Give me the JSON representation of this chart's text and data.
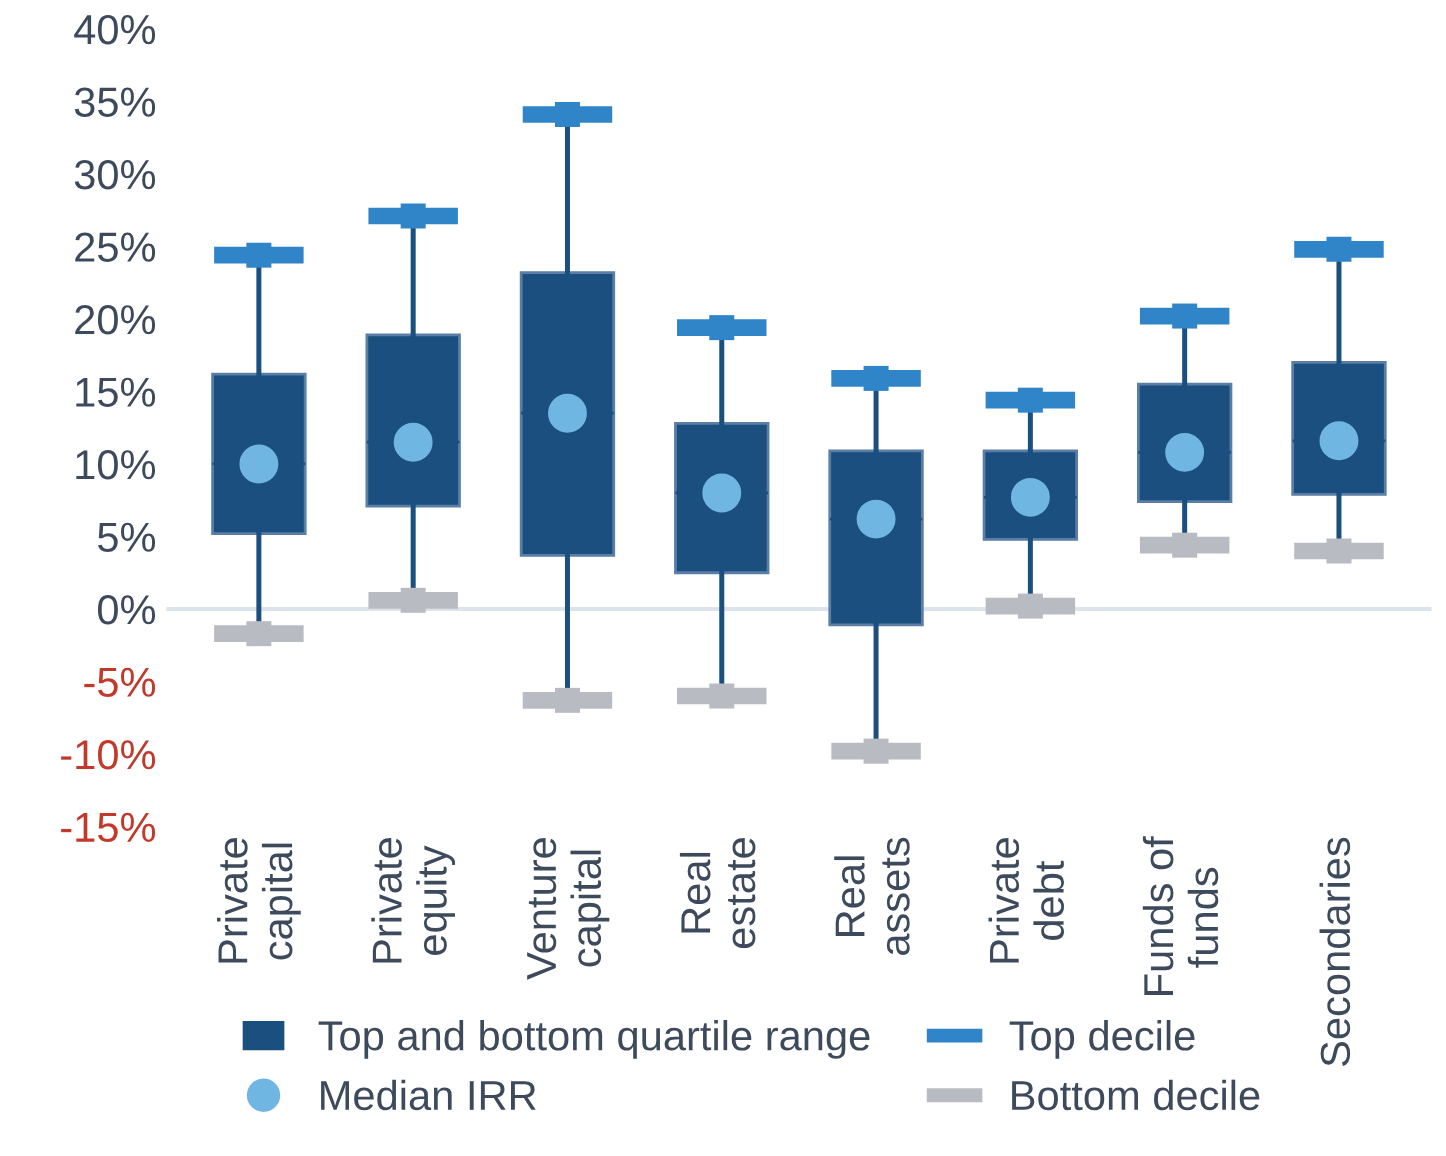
{
  "chart_data": {
    "type": "box",
    "categories": [
      "Private\ncapital",
      "Private\nequity",
      "Venture\ncapital",
      "Real\nestate",
      "Real\nassets",
      "Private\ndebt",
      "Funds of\nfunds",
      "Secondaries"
    ],
    "ylim": [
      -15,
      40
    ],
    "yticks": [
      {
        "value": -15,
        "label": "-15%"
      },
      {
        "value": -10,
        "label": "-10%"
      },
      {
        "value": -5,
        "label": "-5%"
      },
      {
        "value": 0,
        "label": "0%"
      },
      {
        "value": 5,
        "label": "5%"
      },
      {
        "value": 10,
        "label": "10%"
      },
      {
        "value": 15,
        "label": "15%"
      },
      {
        "value": 20,
        "label": "20%"
      },
      {
        "value": 25,
        "label": "25%"
      },
      {
        "value": 30,
        "label": "30%"
      },
      {
        "value": 35,
        "label": "35%"
      },
      {
        "value": 40,
        "label": "40%"
      }
    ],
    "grid": false,
    "legend": "bottom",
    "ref_lines": [
      {
        "axis": "y",
        "value": 0,
        "color": "#dde3ea"
      }
    ],
    "series": [
      {
        "name": "Top and bottom quartile range",
        "color": "#1a4f7f",
        "boxes": [
          {
            "low": -1.7,
            "q1": 5.2,
            "median": 10.0,
            "q3": 16.2,
            "high": 24.4
          },
          {
            "low": 0.6,
            "q1": 7.1,
            "median": 11.5,
            "q3": 18.9,
            "high": 27.1
          },
          {
            "low": -6.3,
            "q1": 3.7,
            "median": 13.5,
            "q3": 23.2,
            "high": 34.1
          },
          {
            "low": -6.0,
            "q1": 2.5,
            "median": 8.0,
            "q3": 12.8,
            "high": 19.4
          },
          {
            "low": -9.8,
            "q1": -1.1,
            "median": 6.2,
            "q3": 10.9,
            "high": 15.9
          },
          {
            "low": 0.2,
            "q1": 4.8,
            "median": 7.7,
            "q3": 10.9,
            "high": 14.4
          },
          {
            "low": 4.4,
            "q1": 7.4,
            "median": 10.8,
            "q3": 15.5,
            "high": 20.2
          },
          {
            "low": 4.0,
            "q1": 7.9,
            "median": 11.6,
            "q3": 17.0,
            "high": 24.8
          }
        ]
      },
      {
        "name": "Top decile",
        "type": "scatter",
        "marker": "square",
        "color": "#3085c8",
        "values": [
          24.4,
          27.1,
          34.1,
          19.4,
          15.9,
          14.4,
          20.2,
          24.8
        ]
      },
      {
        "name": "Median IRR",
        "type": "scatter",
        "marker": "circle",
        "color": "#6fb6e3",
        "values": [
          10.0,
          11.5,
          13.5,
          8.0,
          6.2,
          7.7,
          10.8,
          11.6
        ]
      },
      {
        "name": "Bottom decile",
        "type": "scatter",
        "marker": "square",
        "color": "#b8bcc2",
        "values": [
          -1.7,
          0.6,
          -6.3,
          -6.0,
          -9.8,
          0.2,
          4.4,
          4.0
        ]
      }
    ]
  }
}
